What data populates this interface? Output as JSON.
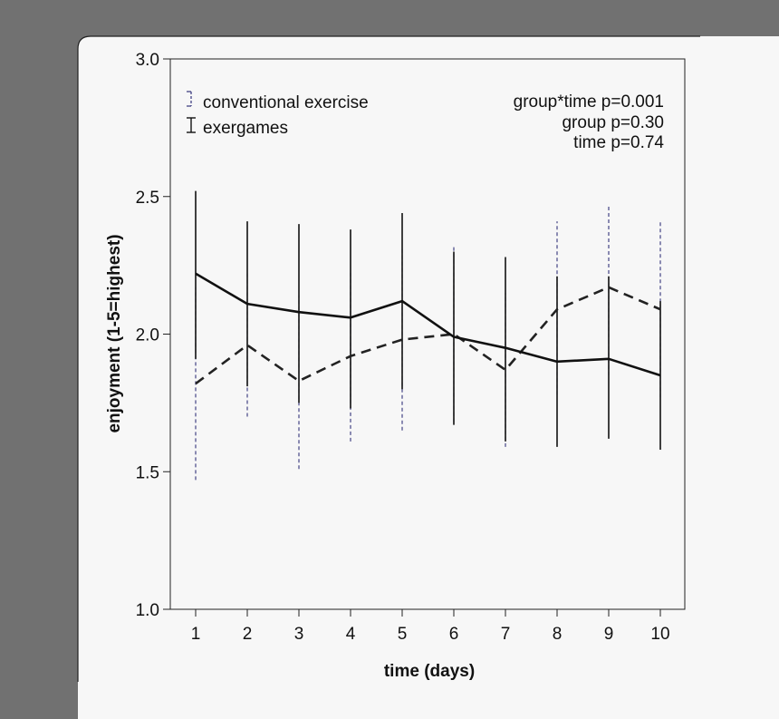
{
  "chart_data": {
    "type": "line",
    "title": "",
    "xlabel": "time (days)",
    "ylabel": "enjoyment (1-5=highest)",
    "x": [
      1,
      2,
      3,
      4,
      5,
      6,
      7,
      8,
      9,
      10
    ],
    "xticks": [
      "1",
      "2",
      "3",
      "4",
      "5",
      "6",
      "7",
      "8",
      "9",
      "10"
    ],
    "ylim": [
      1.0,
      3.0
    ],
    "yticks": [
      "1.0",
      "1.5",
      "2.0",
      "2.5",
      "3.0"
    ],
    "ytick_values": [
      1.0,
      1.5,
      2.0,
      2.5,
      3.0
    ],
    "legend_position": "top-left",
    "annotations": [
      "group*time p=0.001",
      "group p=0.30",
      "time p=0.74"
    ],
    "series": [
      {
        "name": "conventional exercise",
        "line_style": "dashed",
        "color": "#222222",
        "errorbar_color": "#33337a",
        "values": [
          1.82,
          1.96,
          1.83,
          1.92,
          1.98,
          2.0,
          1.87,
          2.09,
          2.17,
          2.09
        ],
        "lower": [
          1.47,
          1.7,
          1.51,
          1.61,
          1.65,
          1.68,
          1.59,
          1.78,
          1.85,
          1.77
        ],
        "upper": [
          2.17,
          2.22,
          2.14,
          2.23,
          2.31,
          2.32,
          2.15,
          2.41,
          2.47,
          2.41
        ]
      },
      {
        "name": "exergames",
        "line_style": "solid",
        "color": "#111111",
        "errorbar_color": "#111111",
        "values": [
          2.22,
          2.11,
          2.08,
          2.06,
          2.12,
          1.99,
          1.95,
          1.9,
          1.91,
          1.85
        ],
        "lower": [
          1.91,
          1.81,
          1.75,
          1.73,
          1.8,
          1.67,
          1.61,
          1.59,
          1.62,
          1.58
        ],
        "upper": [
          2.52,
          2.41,
          2.4,
          2.38,
          2.44,
          2.3,
          2.28,
          2.21,
          2.21,
          2.12
        ]
      }
    ]
  }
}
